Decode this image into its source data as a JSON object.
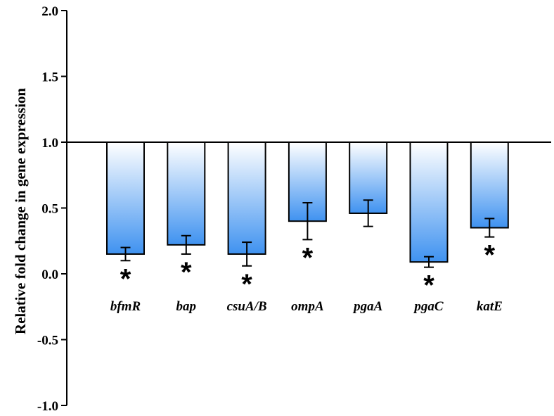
{
  "chart_data": {
    "type": "bar",
    "title": "",
    "xlabel": "",
    "ylabel": "Relative fold change in gene expression",
    "ylim": [
      -1.0,
      2.0
    ],
    "yticks": [
      "2.0",
      "1.5",
      "1.0",
      "0.5",
      "0.0",
      "-0.5",
      "-1.0"
    ],
    "baseline": 1.0,
    "categories": [
      "bfmR",
      "bap",
      "csuA/B",
      "ompA",
      "pgaA",
      "pgaC",
      "katE"
    ],
    "values": [
      0.15,
      0.22,
      0.15,
      0.4,
      0.46,
      0.09,
      0.35
    ],
    "errors": [
      0.05,
      0.07,
      0.09,
      0.14,
      0.1,
      0.04,
      0.07
    ],
    "significant": [
      true,
      true,
      true,
      true,
      false,
      true,
      true
    ],
    "significance_marker": "*",
    "grid": false,
    "legend": "none",
    "colors": {
      "bar_top": "#ffffff",
      "bar_bottom": "#3f92f0",
      "stroke": "#000000"
    }
  }
}
